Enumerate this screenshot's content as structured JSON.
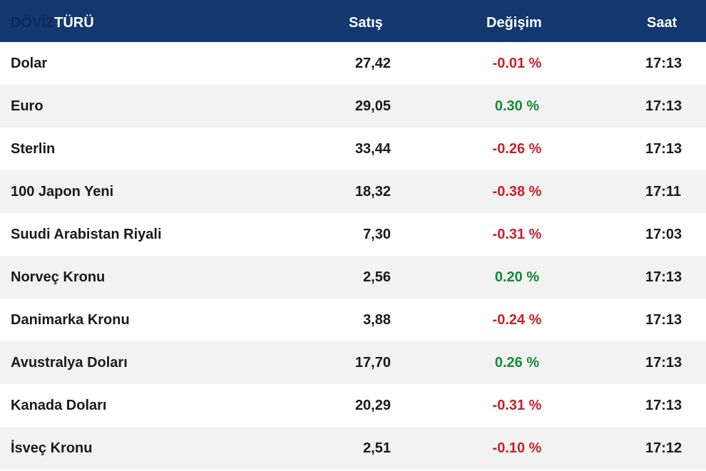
{
  "header": {
    "type_dim": "DÖVİZ",
    "type_main": "TÜRÜ",
    "sell": "Satış",
    "change": "Değişim",
    "time": "Saat"
  },
  "colors": {
    "header_bg": "#12386f",
    "negative": "#c9202a",
    "positive": "#138a36",
    "alt_row": "#f2f2f2"
  },
  "rows": [
    {
      "name": "Dolar",
      "sell": "27,42",
      "change": "-0.01 %",
      "trend": "negative",
      "time": "17:13"
    },
    {
      "name": "Euro",
      "sell": "29,05",
      "change": "0.30 %",
      "trend": "positive",
      "time": "17:13"
    },
    {
      "name": "Sterlin",
      "sell": "33,44",
      "change": "-0.26 %",
      "trend": "negative",
      "time": "17:13"
    },
    {
      "name": "100 Japon Yeni",
      "sell": "18,32",
      "change": "-0.38 %",
      "trend": "negative",
      "time": "17:11"
    },
    {
      "name": "Suudi Arabistan Riyali",
      "sell": "7,30",
      "change": "-0.31 %",
      "trend": "negative",
      "time": "17:03"
    },
    {
      "name": "Norveç Kronu",
      "sell": "2,56",
      "change": "0.20 %",
      "trend": "positive",
      "time": "17:13"
    },
    {
      "name": "Danimarka Kronu",
      "sell": "3,88",
      "change": "-0.24 %",
      "trend": "negative",
      "time": "17:13"
    },
    {
      "name": "Avustralya Doları",
      "sell": "17,70",
      "change": "0.26 %",
      "trend": "positive",
      "time": "17:13"
    },
    {
      "name": "Kanada Doları",
      "sell": "20,29",
      "change": "-0.31 %",
      "trend": "negative",
      "time": "17:13"
    },
    {
      "name": "İsveç Kronu",
      "sell": "2,51",
      "change": "-0.10 %",
      "trend": "negative",
      "time": "17:12"
    }
  ]
}
